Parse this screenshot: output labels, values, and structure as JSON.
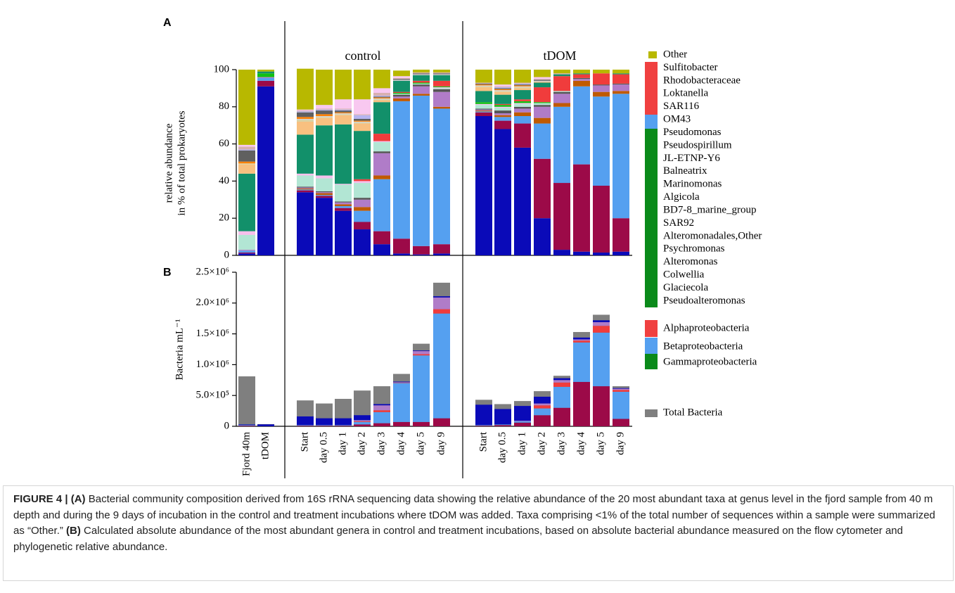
{
  "chart_data": [
    {
      "type": "stacked-bar",
      "panel": "A",
      "ylabel": [
        "relative abundance",
        "in % of total prokaryotes"
      ],
      "annotations": [
        "control",
        "tDOM"
      ],
      "ylim": [
        0,
        100
      ],
      "yticks": [
        0,
        20,
        40,
        60,
        80,
        100
      ],
      "series": [
        {
          "name": "Pseudoalteromonas",
          "color": "#0a0ab8",
          "values": [
            1,
            91,
            34,
            31,
            24,
            14,
            6,
            1,
            0.5,
            1,
            75,
            68,
            58,
            20,
            3,
            2,
            1.5,
            2
          ]
        },
        {
          "name": "Glaciecola",
          "color": "#9c0a48",
          "values": [
            0.5,
            3,
            1,
            1,
            1.5,
            4,
            7,
            8,
            4.5,
            5,
            2,
            4.5,
            13,
            32,
            36,
            47,
            36,
            18
          ]
        },
        {
          "name": "Colwellia",
          "color": "#55a0f0",
          "values": [
            1,
            1.5,
            0.5,
            0.5,
            1,
            6,
            28,
            74,
            81,
            73,
            0.5,
            2,
            4,
            19,
            41,
            42,
            48,
            67
          ]
        },
        {
          "name": "Alteromonas",
          "color": "#c05a00",
          "values": [
            0,
            0,
            0.5,
            1,
            1,
            2,
            2,
            1.5,
            1,
            1,
            0.5,
            1,
            2,
            3,
            2,
            3,
            2.5,
            1.5
          ]
        },
        {
          "name": "Psychromonas",
          "color": "#b07cc8",
          "values": [
            0.5,
            0.5,
            0.5,
            0.5,
            1,
            4,
            12,
            1,
            4,
            8,
            0.5,
            1,
            2,
            6,
            5,
            1,
            3.5,
            3.5
          ]
        },
        {
          "name": "Alteromonadales,Other",
          "color": "#555555",
          "values": [
            0,
            0,
            0.5,
            0.5,
            0.5,
            1,
            1,
            1,
            1,
            1.5,
            0.5,
            1.5,
            1,
            1,
            1,
            0.5,
            0.5,
            0.5
          ]
        },
        {
          "name": "SAR92",
          "color": "#b2e6d4",
          "values": [
            8,
            0,
            6,
            7,
            9,
            8,
            5,
            0.5,
            0.5,
            0.5,
            2,
            1.5,
            1.5,
            1,
            0.5,
            0,
            0,
            0
          ]
        },
        {
          "name": "BD7-8_marine_group",
          "color": "#f6c0ec",
          "values": [
            2,
            0,
            1,
            1.5,
            0.5,
            1,
            0.5,
            0,
            0,
            0.5,
            0.5,
            0.5,
            0.5,
            0,
            0,
            0,
            0,
            0
          ]
        },
        {
          "name": "Algicola",
          "color": "#12c012",
          "values": [
            0,
            2,
            0,
            0,
            0,
            0,
            0,
            0.5,
            0.5,
            0.5,
            1,
            1,
            1,
            0.5,
            0,
            0,
            0,
            0
          ]
        },
        {
          "name": "Marinomonas",
          "color": "#f03c3c",
          "values": [
            0,
            0,
            0,
            0,
            0,
            1,
            4,
            0.5,
            1,
            3,
            0,
            0.5,
            1,
            8,
            8,
            2,
            6,
            5
          ]
        },
        {
          "name": "Balneatrix",
          "color": "#12906a",
          "values": [
            31,
            1,
            21,
            27,
            32,
            26,
            17,
            6,
            3,
            3,
            6,
            5,
            5,
            2.5,
            1,
            0.5,
            0,
            0.5
          ]
        },
        {
          "name": "JL-ETNP-Y6",
          "color": "#f8c080",
          "values": [
            5,
            0,
            7,
            4,
            5,
            4,
            1,
            0,
            0,
            0,
            2,
            1.5,
            1,
            0.5,
            0,
            0,
            0,
            0
          ]
        },
        {
          "name": "Pseudospirillum",
          "color": "#d8d0a0",
          "values": [
            0.5,
            0,
            1,
            0.5,
            0.5,
            0.5,
            0.5,
            0,
            0,
            0,
            0.5,
            0.5,
            0.5,
            0,
            0,
            0,
            0,
            0
          ]
        },
        {
          "name": "Pseudomonas",
          "color": "#d0d0d0",
          "values": [
            0,
            0,
            0.5,
            0.5,
            0.5,
            0.5,
            0.5,
            0.5,
            0.5,
            0.5,
            0.5,
            0.5,
            0.5,
            0.5,
            0,
            0,
            0,
            0
          ]
        },
        {
          "name": "OM43",
          "color": "#ff8000",
          "values": [
            1,
            0,
            1,
            1,
            0.5,
            0.5,
            0.5,
            0,
            0,
            0,
            0.5,
            0.5,
            0.5,
            0,
            0,
            0,
            0,
            0
          ]
        },
        {
          "name": "SAR116",
          "color": "#606060",
          "values": [
            6,
            0,
            2.5,
            2,
            1,
            1,
            0.5,
            0.5,
            0.5,
            0.5,
            0.5,
            0.5,
            0.5,
            0.5,
            0,
            0,
            0,
            0
          ]
        },
        {
          "name": "Loktanella",
          "color": "#b4b4f0",
          "values": [
            0.5,
            0,
            0.5,
            0.5,
            0.5,
            2,
            0.5,
            0,
            0,
            0,
            0,
            0.5,
            0.5,
            0,
            0,
            0,
            0,
            0
          ]
        },
        {
          "name": "Rhodobacteraceae",
          "color": "#d8b0b0",
          "values": [
            1.5,
            0,
            0.5,
            0.5,
            0.5,
            0.5,
            1.5,
            0.5,
            0.5,
            0.5,
            0.5,
            0.5,
            0.5,
            0.5,
            0.5,
            0,
            0,
            0
          ]
        },
        {
          "name": "Sulfitobacter",
          "color": "#f8c8f0",
          "values": [
            1,
            0,
            0.5,
            2,
            5,
            8,
            2.5,
            1,
            0,
            0,
            0,
            1,
            0,
            1,
            0,
            0,
            0,
            0
          ]
        },
        {
          "name": "Other",
          "color": "#b8b800",
          "values": [
            40.5,
            1,
            22,
            19,
            16,
            16,
            10,
            3,
            1.5,
            1.5,
            7,
            8,
            7,
            4,
            2,
            2,
            2,
            2
          ]
        }
      ],
      "classes": [
        {
          "name": "Alphaproteobacteria",
          "color": "#f04040"
        },
        {
          "name": "Betaproteobacteria",
          "color": "#55a0f0"
        },
        {
          "name": "Gammaproteobacteria",
          "color": "#0a8a1a"
        }
      ]
    },
    {
      "type": "stacked-bar",
      "panel": "B",
      "ylabel": "Bacteria mL⁻¹",
      "categories": [
        "Fjord 40m",
        "tDOM",
        "Start",
        "day 0.5",
        "day 1",
        "day 2",
        "day 3",
        "day 4",
        "day 5",
        "day 9",
        "Start",
        "day 0.5",
        "day 1",
        "day 2",
        "day 3",
        "day 4",
        "day 5",
        "day 9"
      ],
      "ylim": [
        0,
        2500000
      ],
      "yticks": [
        0,
        {
          "value": 500000,
          "label": "5.0×10⁵"
        },
        {
          "value": 1000000,
          "label": "1.0×10⁶"
        },
        {
          "value": 1500000,
          "label": "1.5×10⁶"
        },
        {
          "value": 2000000,
          "label": "2.0×10⁶"
        },
        {
          "value": 2500000,
          "label": "2.5×10⁶"
        }
      ],
      "total": {
        "name": "Total Bacteria",
        "color": "#7f7f7f",
        "values": [
          810000,
          35000,
          420000,
          370000,
          445000,
          580000,
          650000,
          850000,
          1340000,
          2330000,
          430000,
          360000,
          410000,
          570000,
          820000,
          1530000,
          1810000,
          650000
        ]
      },
      "series": [
        {
          "name": "Glaciecola",
          "color": "#9c0a48",
          "values": [
            10000,
            1000,
            10000,
            10000,
            10000,
            30000,
            50000,
            70000,
            70000,
            130000,
            10000,
            20000,
            60000,
            180000,
            300000,
            720000,
            650000,
            120000
          ]
        },
        {
          "name": "Colwellia",
          "color": "#55a0f0",
          "values": [
            10000,
            0,
            10000,
            10000,
            10000,
            40000,
            180000,
            630000,
            1080000,
            1700000,
            10000,
            10000,
            20000,
            110000,
            340000,
            640000,
            870000,
            440000
          ]
        },
        {
          "name": "Marinomonas",
          "color": "#f03c3c",
          "values": [
            0,
            0,
            0,
            0,
            0,
            10000,
            30000,
            5000,
            20000,
            70000,
            0,
            0,
            0,
            50000,
            70000,
            30000,
            110000,
            30000
          ]
        },
        {
          "name": "Psychromonas",
          "color": "#b07cc8",
          "values": [
            0,
            0,
            0,
            0,
            0,
            20000,
            80000,
            10000,
            50000,
            190000,
            0,
            0,
            10000,
            30000,
            40000,
            20000,
            60000,
            20000
          ]
        },
        {
          "name": "Pseudoalteromonas",
          "color": "#0a0ab8",
          "values": [
            10000,
            30000,
            140000,
            110000,
            110000,
            80000,
            20000,
            10000,
            10000,
            20000,
            330000,
            250000,
            240000,
            110000,
            30000,
            30000,
            30000,
            10000
          ]
        }
      ]
    }
  ],
  "caption": {
    "figure": "FIGURE 4 |",
    "part_a_label": "(A)",
    "part_a": "Bacterial community composition derived from 16S rRNA sequencing data showing the relative abundance of the 20 most abundant taxa at genus level in the fjord sample from 40 m depth and during the 9 days of incubation in the control and treatment incubations where tDOM was added. Taxa comprising <1% of the total number of sequences within a sample were summarized as “Other.”",
    "part_b_label": "(B)",
    "part_b": "Calculated absolute abundance of the most abundant genera in control and treatment incubations, based on absolute bacterial abundance measured on the flow cytometer and phylogenetic relative abundance."
  }
}
